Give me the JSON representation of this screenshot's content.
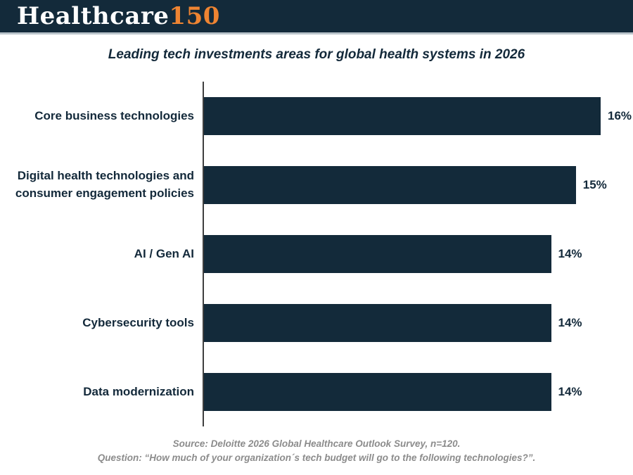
{
  "header": {
    "brand_primary": "Healthcare",
    "brand_accent": "150"
  },
  "title": "Leading tech investments areas for global health systems in 2026",
  "chart_data": {
    "type": "bar",
    "orientation": "horizontal",
    "title": "Leading tech investments areas for global health systems in 2026",
    "categories": [
      "Core business technologies",
      "Digital health technologies and consumer engagement policies",
      "AI / Gen AI",
      "Cybersecurity tools",
      "Data modernization"
    ],
    "values": [
      16,
      15,
      14,
      14,
      14
    ],
    "value_labels": [
      "16%",
      "15%",
      "14%",
      "14%",
      "14%"
    ],
    "unit": "%",
    "xlim": [
      0,
      16
    ],
    "grid": "off",
    "legend": "none",
    "bar_color": "#132a3a"
  },
  "footer": {
    "source_line": "Source: Deloitte 2026 Global Healthcare Outlook Survey, n=120.",
    "question_line": "Question: “How much of your organization´s tech budget will go to the following technologies?”."
  },
  "colors": {
    "navy": "#132a3a",
    "orange": "#ee8432",
    "axis_gray": "#3f3f3f",
    "source_gray": "#8c8c8c",
    "header_divider": "#b9c3ca"
  }
}
